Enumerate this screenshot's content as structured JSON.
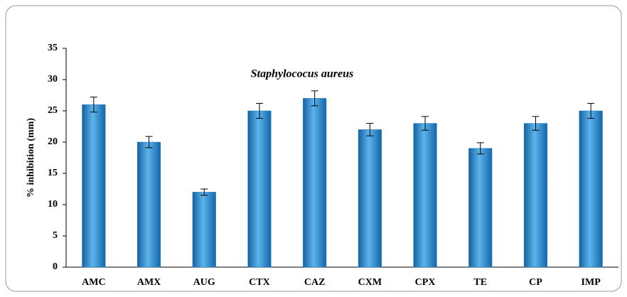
{
  "chart_data": {
    "type": "bar",
    "title": "Staphylococus aureus",
    "y_label": "% inhibition (mm)",
    "categories": [
      "AMC",
      "AMX",
      "AUG",
      "CTX",
      "CAZ",
      "CXM",
      "CPX",
      "TE",
      "CP",
      "IMP"
    ],
    "values": [
      26,
      20,
      12,
      25,
      27,
      22,
      23,
      19,
      23,
      25
    ],
    "errors": [
      1.2,
      0.9,
      0.5,
      1.2,
      1.2,
      1.0,
      1.1,
      0.9,
      1.1,
      1.2
    ],
    "color": "#1f80c8",
    "ylim": [
      0,
      35
    ],
    "yticks": [
      0,
      5,
      10,
      15,
      20,
      25,
      30,
      35
    ],
    "grid": false
  }
}
